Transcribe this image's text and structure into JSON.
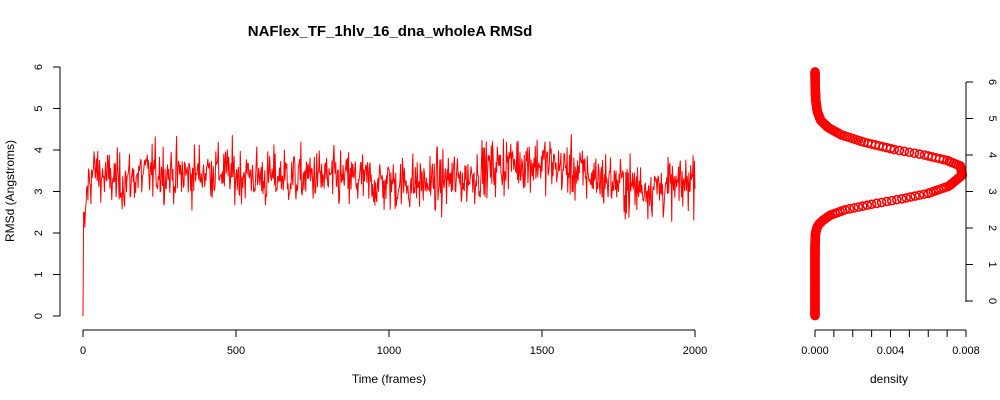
{
  "chart_data": [
    {
      "type": "line",
      "title": "NAFlex_TF_1hlv_16_dna_wholeA RMSd",
      "xlabel": "Time (frames)",
      "ylabel": "RMSd (Angstroms)",
      "xlim": [
        0,
        2000
      ],
      "ylim": [
        0,
        6
      ],
      "x_ticks": [
        "0",
        "500",
        "1000",
        "1500",
        "2000"
      ],
      "y_ticks": [
        "0",
        "1",
        "2",
        "3",
        "4",
        "5",
        "6"
      ],
      "grid": false,
      "series_color": "#ff0000",
      "series": [
        {
          "x": [
            0,
            10,
            20,
            40,
            60,
            80,
            100,
            120,
            140,
            160,
            180,
            200,
            250,
            300,
            350,
            400,
            450,
            500,
            550,
            600,
            650,
            700,
            750,
            800,
            850,
            900,
            950,
            1000,
            1050,
            1100,
            1150,
            1200,
            1250,
            1300,
            1350,
            1400,
            1450,
            1500,
            1550,
            1600,
            1650,
            1700,
            1750,
            1800,
            1850,
            1900,
            1950,
            2000
          ],
          "y": [
            0,
            2.8,
            3.3,
            3.5,
            3.4,
            3.3,
            3.3,
            3.2,
            3.3,
            3.3,
            3.4,
            3.4,
            3.5,
            3.4,
            3.4,
            3.5,
            3.5,
            3.4,
            3.4,
            3.3,
            3.4,
            3.3,
            3.4,
            3.3,
            3.3,
            3.3,
            3.2,
            3.2,
            3.2,
            3.2,
            3.2,
            3.3,
            3.3,
            3.5,
            3.6,
            3.7,
            3.7,
            3.7,
            3.6,
            3.5,
            3.4,
            3.3,
            3.2,
            3.1,
            3.1,
            3.1,
            3.1,
            3.4
          ]
        }
      ]
    },
    {
      "type": "line",
      "xlabel": "density",
      "xlim": [
        0,
        0.008
      ],
      "ylim": [
        0,
        6
      ],
      "x_ticks": [
        "0.000",
        "0.004",
        "0.008"
      ],
      "y_ticks": [
        "0",
        "1",
        "2",
        "3",
        "4",
        "5",
        "6"
      ],
      "grid": false,
      "series_color": "#ff0000",
      "series": [
        {
          "x": [
            0.0,
            0.0,
            0.0,
            2e-05,
            5e-05,
            0.0001,
            0.0002,
            0.0004,
            0.0008,
            0.0016,
            0.003,
            0.0046,
            0.006,
            0.0071,
            0.0078,
            0.0077,
            0.007,
            0.0058,
            0.0042,
            0.0026,
            0.0014,
            0.0007,
            0.0003,
            0.00012,
            4e-05,
            1e-05,
            0.0
          ],
          "y": [
            -0.4,
            1.0,
            1.5,
            1.8,
            1.9,
            2.0,
            2.1,
            2.2,
            2.35,
            2.5,
            2.65,
            2.8,
            2.95,
            3.15,
            3.45,
            3.7,
            3.85,
            4.0,
            4.15,
            4.35,
            4.55,
            4.75,
            4.95,
            5.2,
            5.5,
            5.9,
            6.3
          ]
        }
      ]
    }
  ]
}
